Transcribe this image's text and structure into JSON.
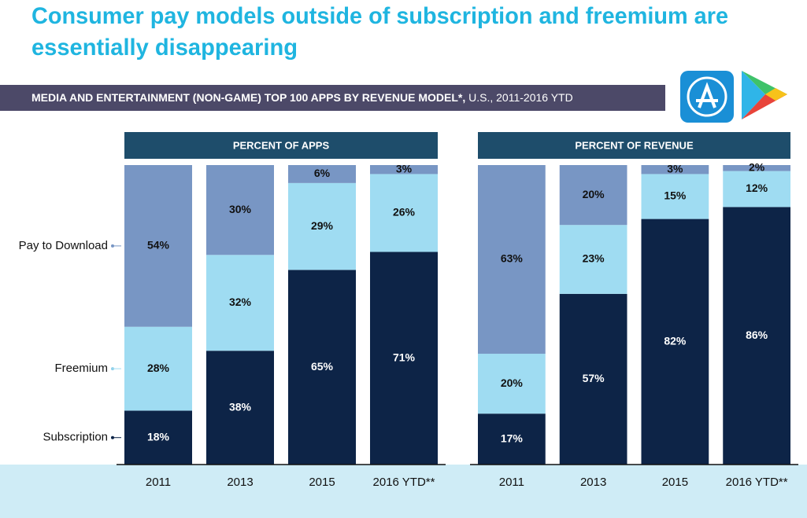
{
  "title": [
    "Consumer pay models outside of subscription and freemium are",
    "essentially disappearing"
  ],
  "subtitle": "MEDIA AND ENTERTAINMENT (NON-GAME) TOP 100 APPS BY REVENUE MODEL*,",
  "subtitle_detail": "U.S., 2011-2016 YTD",
  "chart_data": [
    {
      "type": "bar",
      "stacked": true,
      "title": "PERCENT OF APPS",
      "categories": [
        "2011",
        "2013",
        "2015",
        "2016 YTD**"
      ],
      "ylim": [
        0,
        100
      ],
      "series": [
        {
          "name": "Subscription",
          "color": "#0d2447",
          "values": [
            18,
            38,
            65,
            71
          ],
          "value_labels": [
            "18%",
            "38%",
            "65%",
            "71%"
          ]
        },
        {
          "name": "Freemium",
          "color": "#9fdcf2",
          "values": [
            28,
            32,
            29,
            26
          ],
          "value_labels": [
            "28%",
            "32%",
            "29%",
            "26%"
          ]
        },
        {
          "name": "Pay to Download",
          "color": "#7896c4",
          "values": [
            54,
            30,
            6,
            3
          ],
          "value_labels": [
            "54%",
            "30%",
            "6%",
            "3%"
          ]
        }
      ]
    },
    {
      "type": "bar",
      "stacked": true,
      "title": "PERCENT OF REVENUE",
      "categories": [
        "2011",
        "2013",
        "2015",
        "2016 YTD**"
      ],
      "ylim": [
        0,
        100
      ],
      "series": [
        {
          "color": "#0d2447",
          "values": [
            17,
            57,
            82,
            86
          ],
          "value_labels": [
            "17%",
            "57%",
            "82%",
            "86%"
          ]
        },
        {
          "color": "#9fdcf2",
          "values": [
            20,
            23,
            15,
            12
          ],
          "value_labels": [
            "20%",
            "23%",
            "15%",
            "12%"
          ]
        },
        {
          "color": "#7896c4",
          "values": [
            63,
            20,
            3,
            2
          ],
          "value_labels": [
            "63%",
            "20%",
            "3%",
            "2%"
          ]
        }
      ]
    }
  ]
}
